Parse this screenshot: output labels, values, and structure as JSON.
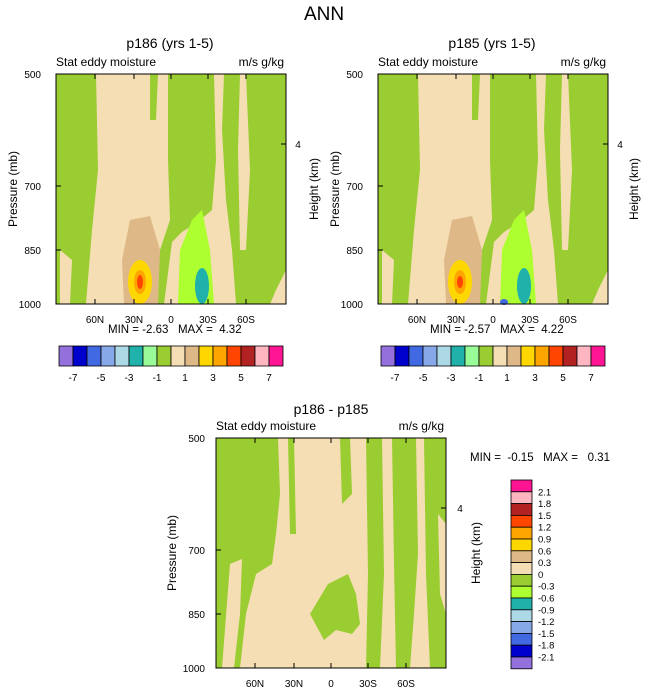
{
  "page_title": "ANN",
  "chart_data": [
    {
      "type": "heatmap",
      "title": "p186 (yrs 1-5)",
      "subtitle_left": "Stat eddy moisture",
      "subtitle_right": "m/s g/kg",
      "ylabel": "Pressure (mb)",
      "ylabel_right": "Height (km)",
      "y_ticks": [
        "500",
        "700",
        "850",
        "1000"
      ],
      "y_right_ticks": [
        "4"
      ],
      "x_ticks": [
        "60N",
        "30N",
        "0",
        "30S",
        "60S"
      ],
      "min_label": "MIN = -2.63   MAX =  4.32",
      "min": -2.63,
      "max": 4.32
    },
    {
      "type": "heatmap",
      "title": "p185 (yrs 1-5)",
      "subtitle_left": "Stat eddy moisture",
      "subtitle_right": "m/s g/kg",
      "ylabel": "Pressure (mb)",
      "ylabel_right": "Height (km)",
      "y_ticks": [
        "500",
        "700",
        "850",
        "1000"
      ],
      "y_right_ticks": [
        "4"
      ],
      "x_ticks": [
        "60N",
        "30N",
        "0",
        "30S",
        "60S"
      ],
      "min_label": "MIN = -2.57   MAX =  4.22",
      "min": -2.57,
      "max": 4.22
    },
    {
      "type": "heatmap",
      "title": "p186 - p185",
      "subtitle_left": "Stat eddy moisture",
      "subtitle_right": "m/s g/kg",
      "ylabel": "Pressure (mb)",
      "ylabel_right": "Height (km)",
      "y_ticks": [
        "500",
        "700",
        "850",
        "1000"
      ],
      "y_right_ticks": [
        "4"
      ],
      "x_ticks": [
        "60N",
        "30N",
        "0",
        "30S",
        "60S"
      ],
      "min_label": "MIN =  -0.15   MAX =   0.31",
      "min": -0.15,
      "max": 0.31
    }
  ],
  "colorbar_top": {
    "colors": [
      "#9370DB",
      "#0000CD",
      "#4169E1",
      "#87A8E8",
      "#ADD8E6",
      "#20B2AA",
      "#98FB98",
      "#9ACD32",
      "#F5DEB3",
      "#DEB887",
      "#FFD700",
      "#FFA500",
      "#FF4500",
      "#B22222",
      "#FFB6C1",
      "#FF1493"
    ],
    "labels": [
      "-7",
      "-5",
      "-3",
      "-1",
      "1",
      "3",
      "5",
      "7"
    ]
  },
  "colorbar_diff": {
    "colors": [
      "#FF1493",
      "#FFB6C1",
      "#B22222",
      "#FF4500",
      "#FFA500",
      "#FFD700",
      "#DEB887",
      "#F5DEB3",
      "#9ACD32",
      "#ADFF2F",
      "#20B2AA",
      "#ADD8E6",
      "#87A8E8",
      "#4169E1",
      "#0000CD",
      "#9370DB"
    ],
    "labels": [
      "2.1",
      "1.8",
      "1.5",
      "1.2",
      "0.9",
      "0.6",
      "0.3",
      "0",
      "-0.3",
      "-0.6",
      "-0.9",
      "-1.2",
      "-1.5",
      "-1.8",
      "-2.1"
    ]
  }
}
